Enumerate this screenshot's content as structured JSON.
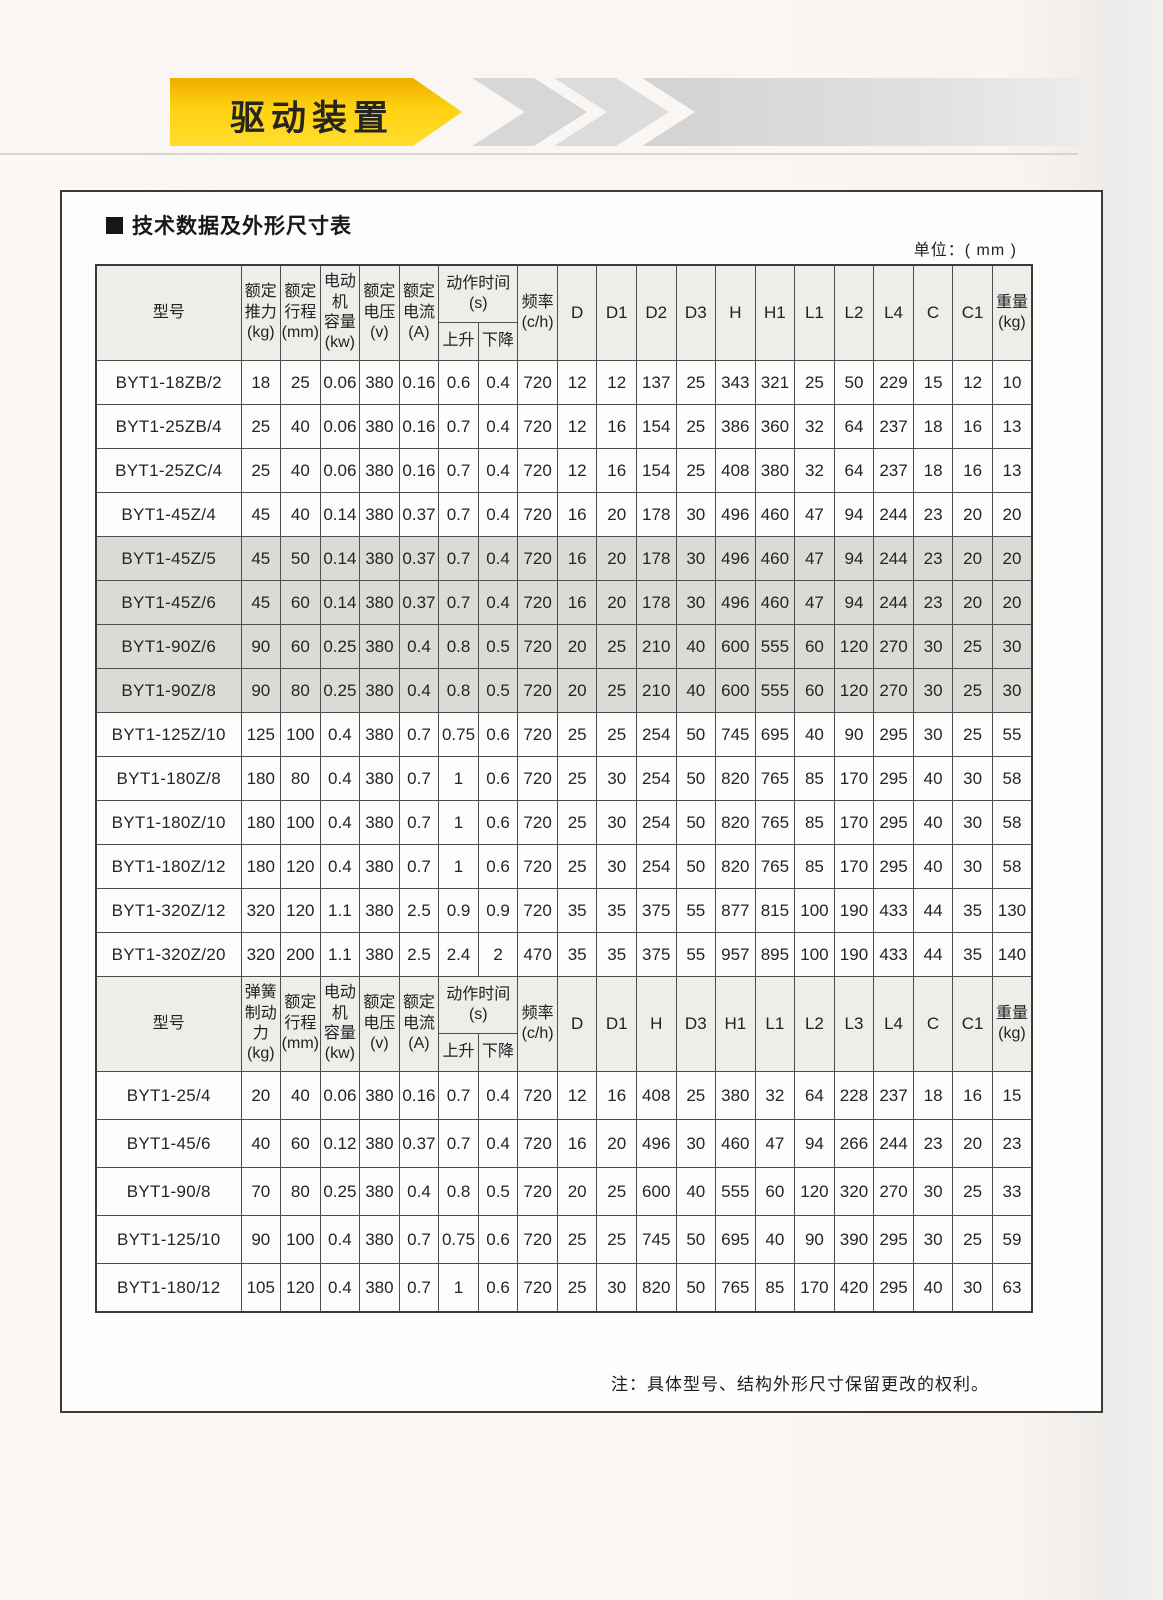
{
  "page": {
    "banner_title": "驱动装置",
    "section_title": "技术数据及外形尺寸表",
    "unit_label": "单位：( mm )",
    "note": "注：具体型号、结构外形尺寸保留更改的权利。"
  },
  "colors": {
    "banner_yellow_top": "#eeae00",
    "banner_yellow_bottom": "#ffd914",
    "chevron_gray": "#d7d7d7",
    "shaded_row": "#dbdad7",
    "header_bg": "#efedea"
  },
  "tables": [
    {
      "headers": {
        "model": "型号",
        "force": "额定\n推力\n(kg)",
        "stroke": "额定\n行程\n(mm)",
        "motor": "电动机\n容量\n(kw)",
        "voltage": "额定\n电压\n(v)",
        "current": "额定\n电流\n(A)",
        "action_time": "动作时间\n(s)",
        "rise": "上升",
        "fall": "下降",
        "frequency": "频率\n(c/h)",
        "dims": [
          "D",
          "D1",
          "D2",
          "D3",
          "H",
          "H1",
          "L1",
          "L2",
          "L4",
          "C",
          "C1"
        ],
        "weight": "重量\n(kg)"
      },
      "rows": [
        {
          "model": "BYT1-18ZB/2",
          "shaded": false,
          "values": [
            "18",
            "25",
            "0.06",
            "380",
            "0.16",
            "0.6",
            "0.4",
            "720",
            "12",
            "12",
            "137",
            "25",
            "343",
            "321",
            "25",
            "50",
            "229",
            "15",
            "12",
            "10"
          ]
        },
        {
          "model": "BYT1-25ZB/4",
          "shaded": false,
          "values": [
            "25",
            "40",
            "0.06",
            "380",
            "0.16",
            "0.7",
            "0.4",
            "720",
            "12",
            "16",
            "154",
            "25",
            "386",
            "360",
            "32",
            "64",
            "237",
            "18",
            "16",
            "13"
          ]
        },
        {
          "model": "BYT1-25ZC/4",
          "shaded": false,
          "values": [
            "25",
            "40",
            "0.06",
            "380",
            "0.16",
            "0.7",
            "0.4",
            "720",
            "12",
            "16",
            "154",
            "25",
            "408",
            "380",
            "32",
            "64",
            "237",
            "18",
            "16",
            "13"
          ]
        },
        {
          "model": "BYT1-45Z/4",
          "shaded": false,
          "values": [
            "45",
            "40",
            "0.14",
            "380",
            "0.37",
            "0.7",
            "0.4",
            "720",
            "16",
            "20",
            "178",
            "30",
            "496",
            "460",
            "47",
            "94",
            "244",
            "23",
            "20",
            "20"
          ]
        },
        {
          "model": "BYT1-45Z/5",
          "shaded": true,
          "values": [
            "45",
            "50",
            "0.14",
            "380",
            "0.37",
            "0.7",
            "0.4",
            "720",
            "16",
            "20",
            "178",
            "30",
            "496",
            "460",
            "47",
            "94",
            "244",
            "23",
            "20",
            "20"
          ]
        },
        {
          "model": "BYT1-45Z/6",
          "shaded": true,
          "values": [
            "45",
            "60",
            "0.14",
            "380",
            "0.37",
            "0.7",
            "0.4",
            "720",
            "16",
            "20",
            "178",
            "30",
            "496",
            "460",
            "47",
            "94",
            "244",
            "23",
            "20",
            "20"
          ]
        },
        {
          "model": "BYT1-90Z/6",
          "shaded": true,
          "values": [
            "90",
            "60",
            "0.25",
            "380",
            "0.4",
            "0.8",
            "0.5",
            "720",
            "20",
            "25",
            "210",
            "40",
            "600",
            "555",
            "60",
            "120",
            "270",
            "30",
            "25",
            "30"
          ]
        },
        {
          "model": "BYT1-90Z/8",
          "shaded": true,
          "values": [
            "90",
            "80",
            "0.25",
            "380",
            "0.4",
            "0.8",
            "0.5",
            "720",
            "20",
            "25",
            "210",
            "40",
            "600",
            "555",
            "60",
            "120",
            "270",
            "30",
            "25",
            "30"
          ]
        },
        {
          "model": "BYT1-125Z/10",
          "shaded": false,
          "values": [
            "125",
            "100",
            "0.4",
            "380",
            "0.7",
            "0.75",
            "0.6",
            "720",
            "25",
            "25",
            "254",
            "50",
            "745",
            "695",
            "40",
            "90",
            "295",
            "30",
            "25",
            "55"
          ]
        },
        {
          "model": "BYT1-180Z/8",
          "shaded": false,
          "values": [
            "180",
            "80",
            "0.4",
            "380",
            "0.7",
            "1",
            "0.6",
            "720",
            "25",
            "30",
            "254",
            "50",
            "820",
            "765",
            "85",
            "170",
            "295",
            "40",
            "30",
            "58"
          ]
        },
        {
          "model": "BYT1-180Z/10",
          "shaded": false,
          "values": [
            "180",
            "100",
            "0.4",
            "380",
            "0.7",
            "1",
            "0.6",
            "720",
            "25",
            "30",
            "254",
            "50",
            "820",
            "765",
            "85",
            "170",
            "295",
            "40",
            "30",
            "58"
          ]
        },
        {
          "model": "BYT1-180Z/12",
          "shaded": false,
          "values": [
            "180",
            "120",
            "0.4",
            "380",
            "0.7",
            "1",
            "0.6",
            "720",
            "25",
            "30",
            "254",
            "50",
            "820",
            "765",
            "85",
            "170",
            "295",
            "40",
            "30",
            "58"
          ]
        },
        {
          "model": "BYT1-320Z/12",
          "shaded": false,
          "values": [
            "320",
            "120",
            "1.1",
            "380",
            "2.5",
            "0.9",
            "0.9",
            "720",
            "35",
            "35",
            "375",
            "55",
            "877",
            "815",
            "100",
            "190",
            "433",
            "44",
            "35",
            "130"
          ]
        },
        {
          "model": "BYT1-320Z/20",
          "shaded": false,
          "values": [
            "320",
            "200",
            "1.1",
            "380",
            "2.5",
            "2.4",
            "2",
            "470",
            "35",
            "35",
            "375",
            "55",
            "957",
            "895",
            "100",
            "190",
            "433",
            "44",
            "35",
            "140"
          ]
        }
      ]
    },
    {
      "headers": {
        "model": "型号",
        "force": "弹簧\n制动力\n(kg)",
        "stroke": "额定\n行程\n(mm)",
        "motor": "电动机\n容量\n(kw)",
        "voltage": "额定\n电压\n(v)",
        "current": "额定\n电流\n(A)",
        "action_time": "动作时间\n(s)",
        "rise": "上升",
        "fall": "下降",
        "frequency": "频率\n(c/h)",
        "dims": [
          "D",
          "D1",
          "H",
          "D3",
          "H1",
          "L1",
          "L2",
          "L3",
          "L4",
          "C",
          "C1"
        ],
        "weight": "重量\n(kg)"
      },
      "rows": [
        {
          "model": "BYT1-25/4",
          "shaded": false,
          "values": [
            "20",
            "40",
            "0.06",
            "380",
            "0.16",
            "0.7",
            "0.4",
            "720",
            "12",
            "16",
            "408",
            "25",
            "380",
            "32",
            "64",
            "228",
            "237",
            "18",
            "16",
            "15"
          ]
        },
        {
          "model": "BYT1-45/6",
          "shaded": false,
          "values": [
            "40",
            "60",
            "0.12",
            "380",
            "0.37",
            "0.7",
            "0.4",
            "720",
            "16",
            "20",
            "496",
            "30",
            "460",
            "47",
            "94",
            "266",
            "244",
            "23",
            "20",
            "23"
          ]
        },
        {
          "model": "BYT1-90/8",
          "shaded": false,
          "values": [
            "70",
            "80",
            "0.25",
            "380",
            "0.4",
            "0.8",
            "0.5",
            "720",
            "20",
            "25",
            "600",
            "40",
            "555",
            "60",
            "120",
            "320",
            "270",
            "30",
            "25",
            "33"
          ]
        },
        {
          "model": "BYT1-125/10",
          "shaded": false,
          "values": [
            "90",
            "100",
            "0.4",
            "380",
            "0.7",
            "0.75",
            "0.6",
            "720",
            "25",
            "25",
            "745",
            "50",
            "695",
            "40",
            "90",
            "390",
            "295",
            "30",
            "25",
            "59"
          ]
        },
        {
          "model": "BYT1-180/12",
          "shaded": false,
          "values": [
            "105",
            "120",
            "0.4",
            "380",
            "0.7",
            "1",
            "0.6",
            "720",
            "25",
            "30",
            "820",
            "50",
            "765",
            "85",
            "170",
            "420",
            "295",
            "40",
            "30",
            "63"
          ]
        }
      ]
    }
  ]
}
